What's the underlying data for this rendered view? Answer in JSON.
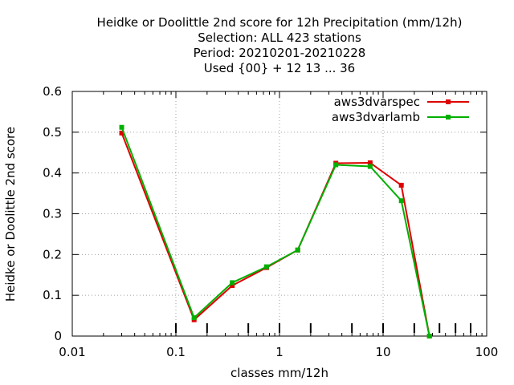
{
  "chart_data": {
    "type": "line",
    "title_lines": [
      "Heidke or Doolittle 2nd score  for 12h Precipitation (mm/12h)",
      "Selection: ALL    423 stations",
      "Period: 20210201-20210228",
      "Used {00} + 12 13 ... 36"
    ],
    "xlabel": "classes mm/12h",
    "ylabel": "Heidke or Doolittle 2nd score",
    "x_scale": "log",
    "xlim": [
      0.01,
      100
    ],
    "ylim": [
      0,
      0.6
    ],
    "x_ticks": [
      0.01,
      0.1,
      1,
      10,
      100
    ],
    "x_tick_labels": [
      "0.01",
      "0.1",
      "1",
      "10",
      "100"
    ],
    "y_ticks": [
      0,
      0.1,
      0.2,
      0.3,
      0.4,
      0.5,
      0.6
    ],
    "y_tick_labels": [
      "0",
      "0.1",
      "0.2",
      "0.3",
      "0.4",
      "0.5",
      "0.6"
    ],
    "class_markers": [
      0.1,
      0.2,
      0.5,
      1,
      2,
      5,
      10,
      20,
      35,
      50,
      70
    ],
    "grid": true,
    "legend_position": "top-right",
    "series": [
      {
        "name": "aws3dvarspec",
        "color": "#dd0000",
        "x": [
          0.03,
          0.15,
          0.35,
          0.75,
          1.5,
          3.5,
          7.5,
          15,
          28
        ],
        "y": [
          0.498,
          0.04,
          0.124,
          0.168,
          0.211,
          0.424,
          0.425,
          0.37,
          0.0
        ]
      },
      {
        "name": "aws3dvarlamb",
        "color": "#00b000",
        "x": [
          0.03,
          0.15,
          0.35,
          0.75,
          1.5,
          3.5,
          7.5,
          15,
          28
        ],
        "y": [
          0.512,
          0.045,
          0.131,
          0.17,
          0.211,
          0.42,
          0.416,
          0.332,
          0.0
        ]
      }
    ]
  }
}
